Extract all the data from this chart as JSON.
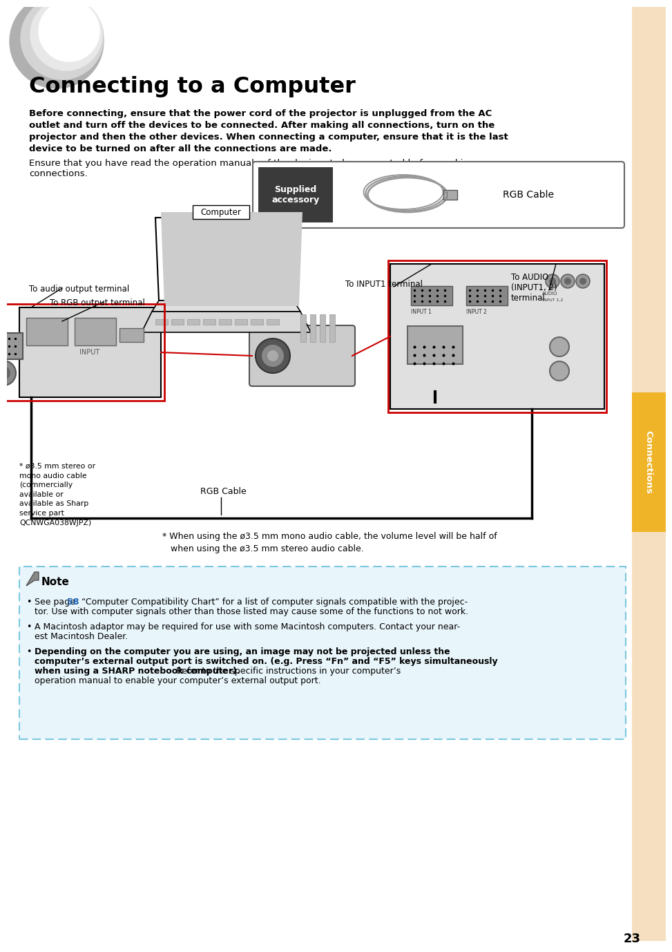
{
  "title": "Connecting to a Computer",
  "page_bg": "#ffffff",
  "right_margin_bg": "#f5dfc0",
  "tab_color": "#f0b429",
  "tab_text": "Connections",
  "tab_text_color": "#ffffff",
  "note_bg": "#e8f5fa",
  "note_border": "#7bc8e0",
  "page_number": "23",
  "circle_color1": "#c8c8c8",
  "circle_color2": "#e0e0e0",
  "bold_lines": [
    "Before connecting, ensure that the power cord of the projector is unplugged from the AC",
    "outlet and turn off the devices to be connected. After making all connections, turn on the",
    "projector and then the other devices. When connecting a computer, ensure that it is the last",
    "device to be turned on after all the connections are made."
  ],
  "normal_lines": [
    "Ensure that you have read the operation manuals of the devices to be connected before making",
    "connections."
  ],
  "supplied_label": "Supplied\naccessory",
  "rgb_cable_label": "RGB Cable",
  "label_audio_out": "To audio output terminal",
  "label_rgb_out": "To RGB output terminal",
  "label_computer": "Computer",
  "label_input1": "To INPUT1 terminal",
  "label_audio_in": "To AUDIO\n(INPUT1, 2)\nterminal",
  "label_rgb_cable_bottom": "RGB Cable",
  "label_footnote_left": "* ø3.5 mm stereo or\nmono audio cable\n(commercially\navailable or\navailable as Sharp\nservice part\nQCNWGA038WJPZ)",
  "footnote_text": "* When using the ø3.5 mm mono audio cable, the volume level will be half of",
  "footnote_text2": "   when using the ø3.5 mm stereo audio cable.",
  "note_title": "Note",
  "note_b1_l1": "See page ",
  "note_b1_58": "58",
  "note_b1_l1b": " “Computer Compatibility Chart” for a list of computer signals compatible with the projec-",
  "note_b1_l2": "tor. Use with computer signals other than those listed may cause some of the functions to not work.",
  "note_b2_l1": "A Macintosh adaptor may be required for use with some Macintosh computers. Contact your near-",
  "note_b2_l2": "est Macintosh Dealer.",
  "note_b3_bold1": "Depending on the computer you are using, an image may not be projected unless the",
  "note_b3_bold2": "computer’s external output port is switched on. (e.g. Press “Fn” and “F5” keys simultaneously",
  "note_b3_bold3": "when using a SHARP notebook computer).",
  "note_b3_norm3": " Refer to the specific instructions in your computer’s",
  "note_b3_norm4": "operation manual to enable your computer’s external output port.",
  "red_color": "#cc0000",
  "link_color": "#1a5fb4",
  "diagram_bg": "#f8f8f8"
}
